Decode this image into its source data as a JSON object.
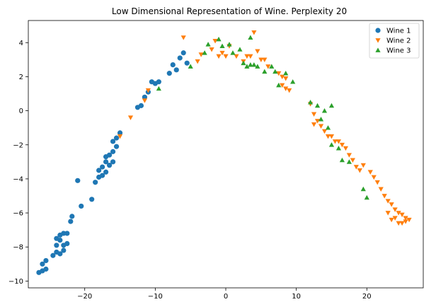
{
  "chart_data": {
    "type": "scatter",
    "title": "Low Dimensional Representation of Wine. Perplexity 20",
    "xlabel": "",
    "ylabel": "",
    "xlim": [
      -28,
      28
    ],
    "ylim": [
      -10.4,
      5.3
    ],
    "x_ticks": [
      -20,
      -10,
      0,
      10,
      20
    ],
    "y_ticks": [
      -10,
      -8,
      -6,
      -4,
      -2,
      0,
      2,
      4
    ],
    "grid": false,
    "legend_position": "top-right",
    "series": [
      {
        "name": "Wine 1",
        "marker": "circle",
        "color": "#1f77b4",
        "points": [
          [
            -26.5,
            -9.5
          ],
          [
            -26.0,
            -9.4
          ],
          [
            -25.5,
            -9.3
          ],
          [
            -26.0,
            -9.0
          ],
          [
            -25.5,
            -8.8
          ],
          [
            -24.5,
            -8.5
          ],
          [
            -24.0,
            -8.3
          ],
          [
            -23.5,
            -8.4
          ],
          [
            -23.0,
            -8.2
          ],
          [
            -24.0,
            -7.9
          ],
          [
            -23.0,
            -7.9
          ],
          [
            -22.5,
            -7.8
          ],
          [
            -24.0,
            -7.5
          ],
          [
            -23.5,
            -7.3
          ],
          [
            -23.0,
            -7.2
          ],
          [
            -22.5,
            -7.2
          ],
          [
            -23.5,
            -7.6
          ],
          [
            -22.0,
            -6.5
          ],
          [
            -21.8,
            -6.2
          ],
          [
            -20.5,
            -5.6
          ],
          [
            -19.0,
            -5.2
          ],
          [
            -18.5,
            -4.2
          ],
          [
            -21.0,
            -4.1
          ],
          [
            -18.0,
            -3.9
          ],
          [
            -17.5,
            -3.8
          ],
          [
            -17.0,
            -3.6
          ],
          [
            -18.0,
            -3.5
          ],
          [
            -17.5,
            -3.3
          ],
          [
            -16.5,
            -3.2
          ],
          [
            -17.0,
            -3.0
          ],
          [
            -16.0,
            -3.0
          ],
          [
            -17.0,
            -2.7
          ],
          [
            -16.5,
            -2.6
          ],
          [
            -16.0,
            -2.4
          ],
          [
            -15.5,
            -2.1
          ],
          [
            -16.0,
            -1.8
          ],
          [
            -15.5,
            -1.6
          ],
          [
            -15.0,
            -1.3
          ],
          [
            -12.5,
            0.2
          ],
          [
            -12.0,
            0.3
          ],
          [
            -11.5,
            0.8
          ],
          [
            -11.0,
            1.1
          ],
          [
            -10.5,
            1.7
          ],
          [
            -10.0,
            1.6
          ],
          [
            -9.5,
            1.7
          ],
          [
            -8.0,
            2.2
          ],
          [
            -7.5,
            2.7
          ],
          [
            -7.0,
            2.4
          ],
          [
            -6.5,
            3.1
          ],
          [
            -6.0,
            3.4
          ],
          [
            -5.5,
            2.8
          ]
        ]
      },
      {
        "name": "Wine 2",
        "marker": "triangle_down",
        "color": "#ff7f0e",
        "points": [
          [
            -15.0,
            -1.5
          ],
          [
            -13.5,
            -0.4
          ],
          [
            -11.5,
            0.6
          ],
          [
            -11.0,
            1.2
          ],
          [
            -6.0,
            4.3
          ],
          [
            -4.0,
            2.9
          ],
          [
            -3.5,
            3.3
          ],
          [
            -2.0,
            3.6
          ],
          [
            -1.5,
            4.1
          ],
          [
            -1.0,
            3.2
          ],
          [
            -0.5,
            3.4
          ],
          [
            0.0,
            3.2
          ],
          [
            0.5,
            3.8
          ],
          [
            1.5,
            3.2
          ],
          [
            2.5,
            2.9
          ],
          [
            3.0,
            3.2
          ],
          [
            3.5,
            3.2
          ],
          [
            4.0,
            4.6
          ],
          [
            4.5,
            3.5
          ],
          [
            5.0,
            3.0
          ],
          [
            5.5,
            3.0
          ],
          [
            6.0,
            2.6
          ],
          [
            7.5,
            2.2
          ],
          [
            8.0,
            2.0
          ],
          [
            8.5,
            1.9
          ],
          [
            8.0,
            1.5
          ],
          [
            8.5,
            1.3
          ],
          [
            9.0,
            1.2
          ],
          [
            12.0,
            0.4
          ],
          [
            12.5,
            -0.2
          ],
          [
            12.5,
            -0.8
          ],
          [
            13.0,
            -0.6
          ],
          [
            13.5,
            -0.9
          ],
          [
            14.0,
            -1.2
          ],
          [
            14.5,
            -1.5
          ],
          [
            15.0,
            -1.5
          ],
          [
            15.5,
            -1.8
          ],
          [
            16.0,
            -1.8
          ],
          [
            16.5,
            -2.0
          ],
          [
            17.0,
            -2.2
          ],
          [
            17.5,
            -2.6
          ],
          [
            18.0,
            -2.9
          ],
          [
            18.5,
            -3.3
          ],
          [
            19.0,
            -3.5
          ],
          [
            19.5,
            -3.2
          ],
          [
            20.5,
            -3.6
          ],
          [
            21.0,
            -3.9
          ],
          [
            21.5,
            -4.2
          ],
          [
            22.0,
            -4.6
          ],
          [
            22.5,
            -5.0
          ],
          [
            23.0,
            -5.3
          ],
          [
            23.5,
            -5.5
          ],
          [
            24.0,
            -5.8
          ],
          [
            24.5,
            -6.0
          ],
          [
            25.0,
            -6.1
          ],
          [
            25.5,
            -6.3
          ],
          [
            26.0,
            -6.4
          ],
          [
            23.0,
            -6.0
          ],
          [
            24.0,
            -6.3
          ],
          [
            24.5,
            -6.6
          ],
          [
            25.0,
            -6.6
          ],
          [
            23.5,
            -6.4
          ],
          [
            25.5,
            -6.5
          ]
        ]
      },
      {
        "name": "Wine 3",
        "marker": "triangle_up",
        "color": "#2ca02c",
        "points": [
          [
            -9.5,
            1.3
          ],
          [
            -5.0,
            2.6
          ],
          [
            -3.0,
            3.4
          ],
          [
            -2.5,
            3.9
          ],
          [
            -1.0,
            4.2
          ],
          [
            -0.5,
            3.8
          ],
          [
            0.5,
            3.9
          ],
          [
            1.0,
            3.4
          ],
          [
            2.0,
            3.6
          ],
          [
            2.5,
            2.8
          ],
          [
            3.0,
            2.6
          ],
          [
            3.5,
            4.3
          ],
          [
            3.5,
            2.7
          ],
          [
            4.0,
            2.7
          ],
          [
            4.5,
            2.6
          ],
          [
            5.5,
            2.3
          ],
          [
            6.5,
            2.6
          ],
          [
            7.0,
            2.3
          ],
          [
            7.5,
            1.5
          ],
          [
            8.5,
            2.2
          ],
          [
            9.5,
            1.7
          ],
          [
            12.0,
            0.5
          ],
          [
            13.0,
            0.3
          ],
          [
            13.5,
            -0.5
          ],
          [
            14.0,
            0.0
          ],
          [
            15.0,
            0.3
          ],
          [
            14.5,
            -1.0
          ],
          [
            15.0,
            -2.0
          ],
          [
            16.0,
            -2.2
          ],
          [
            16.5,
            -2.9
          ],
          [
            17.5,
            -3.0
          ],
          [
            19.5,
            -4.6
          ],
          [
            20.0,
            -5.1
          ]
        ]
      }
    ]
  }
}
